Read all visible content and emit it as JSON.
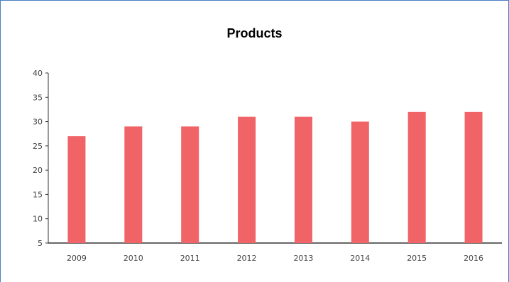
{
  "chart_data": {
    "type": "bar",
    "title": "Products",
    "xlabel": "",
    "ylabel": "",
    "categories": [
      "2009",
      "2010",
      "2011",
      "2012",
      "2013",
      "2014",
      "2015",
      "2016"
    ],
    "values": [
      27,
      29,
      29,
      31,
      31,
      30,
      32,
      32
    ],
    "ylim": [
      5,
      40
    ],
    "yticks": [
      5,
      10,
      15,
      20,
      25,
      30,
      35,
      40
    ],
    "ytick_labels": [
      "5",
      "10",
      "15",
      "20",
      "25",
      "30",
      "35",
      "40"
    ],
    "grid": false,
    "legend": "none",
    "colors": {
      "bar": "#f06468",
      "axis": "#333333",
      "frame": "#4a7fc1"
    }
  }
}
